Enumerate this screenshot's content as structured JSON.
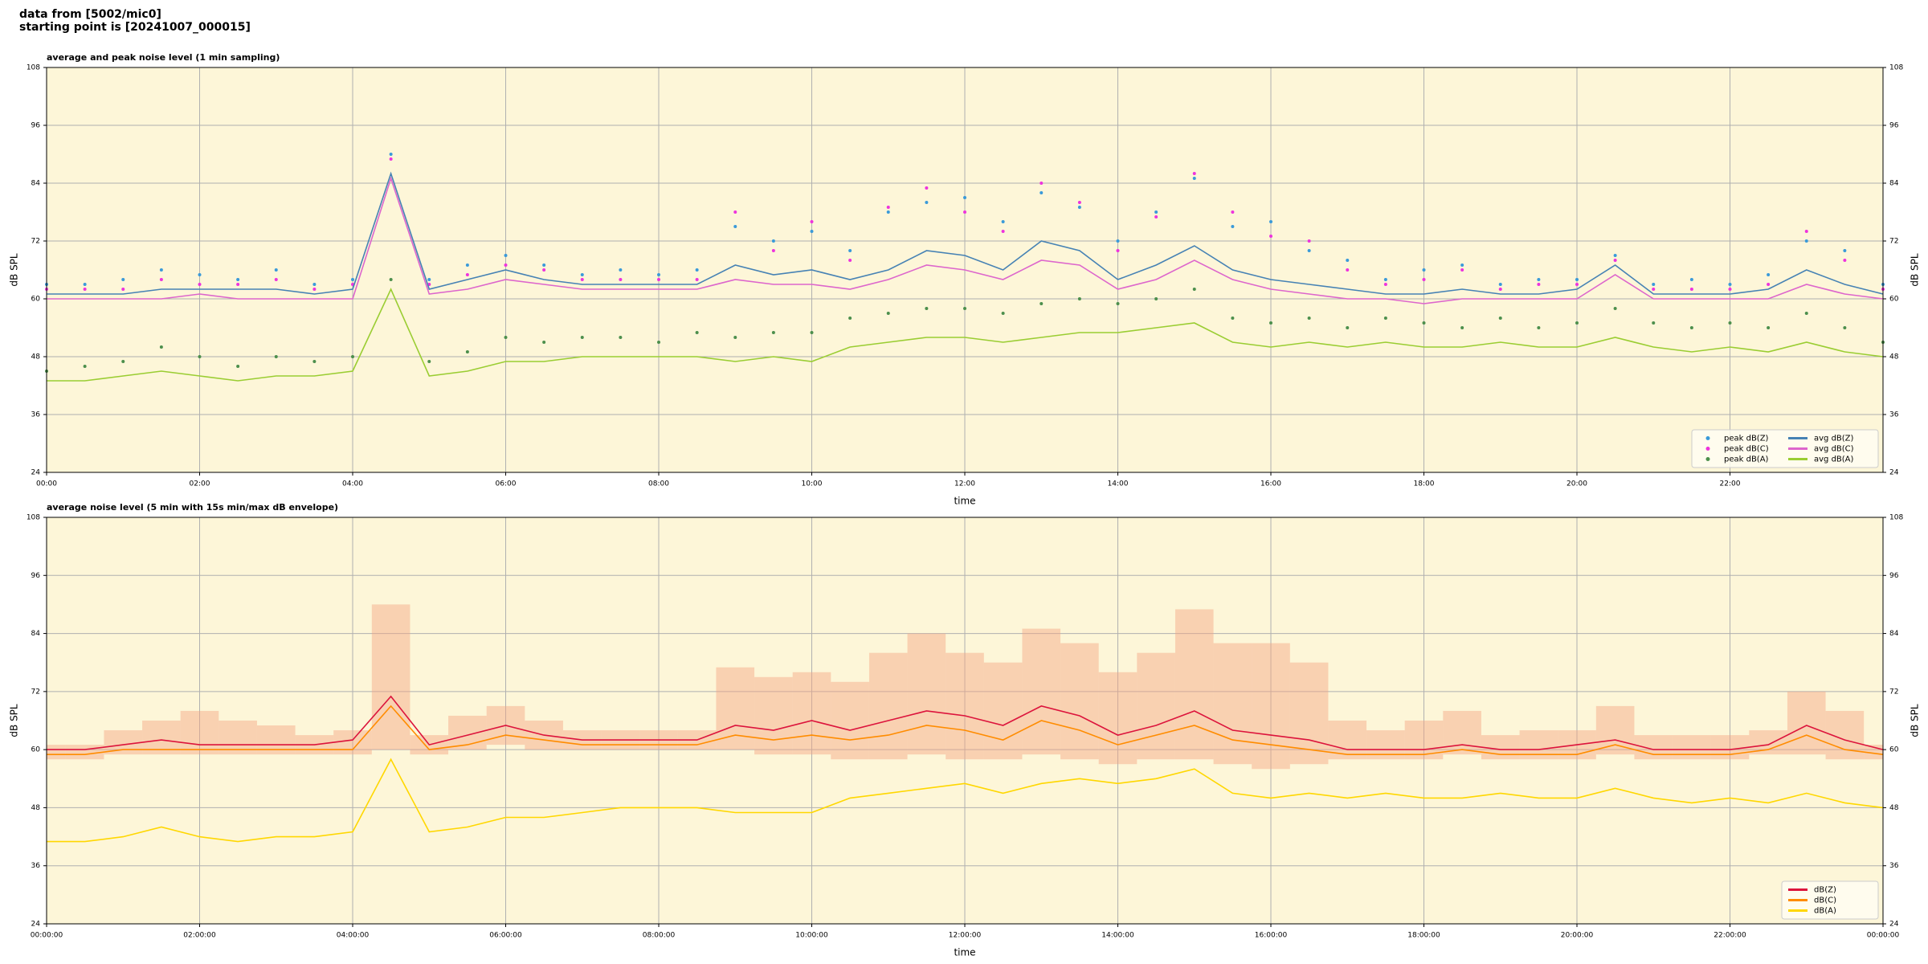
{
  "header": {
    "lines": [
      "data from [5002/mic0]",
      "starting point is [20241007_000015]"
    ]
  },
  "chart_data": [
    {
      "type": "line",
      "title": "average and peak noise level (1 min sampling)",
      "xlabel": "time",
      "ylabel": "dB SPL",
      "xlim": [
        0,
        24
      ],
      "ylim": [
        24,
        108
      ],
      "yticks": [
        24,
        36,
        48,
        60,
        72,
        84,
        96,
        108
      ],
      "xticks": [
        {
          "value": 0,
          "label": "00:00"
        },
        {
          "value": 2,
          "label": "02:00"
        },
        {
          "value": 4,
          "label": "04:00"
        },
        {
          "value": 6,
          "label": "06:00"
        },
        {
          "value": 8,
          "label": "08:00"
        },
        {
          "value": 10,
          "label": "10:00"
        },
        {
          "value": 12,
          "label": "12:00"
        },
        {
          "value": 14,
          "label": "14:00"
        },
        {
          "value": 16,
          "label": "16:00"
        },
        {
          "value": 18,
          "label": "18:00"
        },
        {
          "value": 20,
          "label": "20:00"
        },
        {
          "value": 22,
          "label": "22:00"
        }
      ],
      "grid": true,
      "background": "#fdf6d8",
      "legend": {
        "loc": "lower right",
        "ncol": 2
      },
      "x": [
        0,
        0.5,
        1,
        1.5,
        2,
        2.5,
        3,
        3.5,
        4,
        4.5,
        5,
        5.5,
        6,
        6.5,
        7,
        7.5,
        8,
        8.5,
        9,
        9.5,
        10,
        10.5,
        11,
        11.5,
        12,
        12.5,
        13,
        13.5,
        14,
        14.5,
        15,
        15.5,
        16,
        16.5,
        17,
        17.5,
        18,
        18.5,
        19,
        19.5,
        20,
        20.5,
        21,
        21.5,
        22,
        22.5,
        23,
        23.5,
        24
      ],
      "series": [
        {
          "name": "peak dB(Z)",
          "type": "scatter",
          "color": "#3a9ad9",
          "values": [
            63,
            63,
            64,
            66,
            65,
            64,
            66,
            63,
            64,
            90,
            64,
            67,
            69,
            67,
            65,
            66,
            65,
            66,
            75,
            72,
            74,
            70,
            78,
            80,
            81,
            76,
            82,
            79,
            72,
            78,
            85,
            75,
            76,
            70,
            68,
            64,
            66,
            67,
            63,
            64,
            64,
            69,
            63,
            64,
            63,
            65,
            72,
            70,
            63
          ]
        },
        {
          "name": "peak dB(C)",
          "type": "scatter",
          "color": "#ee33dd",
          "values": [
            62,
            62,
            62,
            64,
            63,
            63,
            64,
            62,
            63,
            89,
            63,
            65,
            67,
            66,
            64,
            64,
            64,
            64,
            78,
            70,
            76,
            68,
            79,
            83,
            78,
            74,
            84,
            80,
            70,
            77,
            86,
            78,
            73,
            72,
            66,
            63,
            64,
            66,
            62,
            63,
            63,
            68,
            62,
            62,
            62,
            63,
            74,
            68,
            62
          ]
        },
        {
          "name": "peak dB(A)",
          "type": "scatter",
          "color": "#4c8f4c",
          "values": [
            45,
            46,
            47,
            50,
            48,
            46,
            48,
            47,
            48,
            64,
            47,
            49,
            52,
            51,
            52,
            52,
            51,
            53,
            52,
            53,
            53,
            56,
            57,
            58,
            58,
            57,
            59,
            60,
            59,
            60,
            62,
            56,
            55,
            56,
            54,
            56,
            55,
            54,
            56,
            54,
            55,
            58,
            55,
            54,
            55,
            54,
            57,
            54,
            51
          ]
        },
        {
          "name": "avg dB(Z)",
          "type": "line",
          "color": "#4682b4",
          "values": [
            61,
            61,
            61,
            62,
            62,
            62,
            62,
            61,
            62,
            86,
            62,
            64,
            66,
            64,
            63,
            63,
            63,
            63,
            67,
            65,
            66,
            64,
            66,
            70,
            69,
            66,
            72,
            70,
            64,
            67,
            71,
            66,
            64,
            63,
            62,
            61,
            61,
            62,
            61,
            61,
            62,
            67,
            61,
            61,
            61,
            62,
            66,
            63,
            61
          ]
        },
        {
          "name": "avg dB(C)",
          "type": "line",
          "color": "#dd66cc",
          "values": [
            60,
            60,
            60,
            60,
            61,
            60,
            60,
            60,
            60,
            85,
            61,
            62,
            64,
            63,
            62,
            62,
            62,
            62,
            64,
            63,
            63,
            62,
            64,
            67,
            66,
            64,
            68,
            67,
            62,
            64,
            68,
            64,
            62,
            61,
            60,
            60,
            59,
            60,
            60,
            60,
            60,
            65,
            60,
            60,
            60,
            60,
            63,
            61,
            60
          ]
        },
        {
          "name": "avg dB(A)",
          "type": "line",
          "color": "#9acd32",
          "values": [
            43,
            43,
            44,
            45,
            44,
            43,
            44,
            44,
            45,
            62,
            44,
            45,
            47,
            47,
            48,
            48,
            48,
            48,
            47,
            48,
            47,
            50,
            51,
            52,
            52,
            51,
            52,
            53,
            53,
            54,
            55,
            51,
            50,
            51,
            50,
            51,
            50,
            50,
            51,
            50,
            50,
            52,
            50,
            49,
            50,
            49,
            51,
            49,
            48
          ]
        }
      ]
    },
    {
      "type": "line",
      "title": "average noise level (5 min with 15s min/max dB envelope)",
      "xlabel": "time",
      "ylabel": "dB SPL",
      "xlim": [
        0,
        24
      ],
      "ylim": [
        24,
        108
      ],
      "yticks": [
        24,
        36,
        48,
        60,
        72,
        84,
        96,
        108
      ],
      "xticks": [
        {
          "value": 0,
          "label": "00:00:00"
        },
        {
          "value": 2,
          "label": "02:00:00"
        },
        {
          "value": 4,
          "label": "04:00:00"
        },
        {
          "value": 6,
          "label": "06:00:00"
        },
        {
          "value": 8,
          "label": "08:00:00"
        },
        {
          "value": 10,
          "label": "10:00:00"
        },
        {
          "value": 12,
          "label": "12:00:00"
        },
        {
          "value": 14,
          "label": "14:00:00"
        },
        {
          "value": 16,
          "label": "16:00:00"
        },
        {
          "value": 18,
          "label": "18:00:00"
        },
        {
          "value": 20,
          "label": "20:00:00"
        },
        {
          "value": 22,
          "label": "22:00:00"
        },
        {
          "value": 24,
          "label": "00:00:00"
        }
      ],
      "grid": true,
      "background": "#fdf6d8",
      "legend": {
        "loc": "lower right",
        "ncol": 1
      },
      "x": [
        0,
        0.5,
        1,
        1.5,
        2,
        2.5,
        3,
        3.5,
        4,
        4.5,
        5,
        5.5,
        6,
        6.5,
        7,
        7.5,
        8,
        8.5,
        9,
        9.5,
        10,
        10.5,
        11,
        11.5,
        12,
        12.5,
        13,
        13.5,
        14,
        14.5,
        15,
        15.5,
        16,
        16.5,
        17,
        17.5,
        18,
        18.5,
        19,
        19.5,
        20,
        20.5,
        21,
        21.5,
        22,
        22.5,
        23,
        23.5,
        24
      ],
      "envelope": {
        "color": "#f4a582",
        "low": [
          58,
          58,
          59,
          59,
          59,
          59,
          59,
          59,
          59,
          60,
          59,
          60,
          61,
          60,
          60,
          60,
          60,
          60,
          60,
          59,
          59,
          58,
          58,
          59,
          58,
          58,
          59,
          58,
          57,
          58,
          58,
          57,
          56,
          57,
          58,
          58,
          58,
          59,
          58,
          58,
          58,
          59,
          58,
          58,
          58,
          59,
          59,
          58,
          58
        ],
        "high": [
          61,
          61,
          64,
          66,
          68,
          66,
          65,
          63,
          64,
          90,
          63,
          67,
          69,
          66,
          64,
          64,
          64,
          64,
          77,
          75,
          76,
          74,
          80,
          84,
          80,
          78,
          85,
          82,
          76,
          80,
          89,
          82,
          82,
          78,
          66,
          64,
          66,
          68,
          63,
          64,
          64,
          69,
          63,
          63,
          63,
          64,
          72,
          68,
          61
        ]
      },
      "series": [
        {
          "name": "dB(Z)",
          "type": "line",
          "color": "#dc143c",
          "values": [
            60,
            60,
            61,
            62,
            61,
            61,
            61,
            61,
            62,
            71,
            61,
            63,
            65,
            63,
            62,
            62,
            62,
            62,
            65,
            64,
            66,
            64,
            66,
            68,
            67,
            65,
            69,
            67,
            63,
            65,
            68,
            64,
            63,
            62,
            60,
            60,
            60,
            61,
            60,
            60,
            61,
            62,
            60,
            60,
            60,
            61,
            65,
            62,
            60
          ]
        },
        {
          "name": "dB(C)",
          "type": "line",
          "color": "#ff8c00",
          "values": [
            59,
            59,
            60,
            60,
            60,
            60,
            60,
            60,
            60,
            69,
            60,
            61,
            63,
            62,
            61,
            61,
            61,
            61,
            63,
            62,
            63,
            62,
            63,
            65,
            64,
            62,
            66,
            64,
            61,
            63,
            65,
            62,
            61,
            60,
            59,
            59,
            59,
            60,
            59,
            59,
            59,
            61,
            59,
            59,
            59,
            60,
            63,
            60,
            59
          ]
        },
        {
          "name": "dB(A)",
          "type": "line",
          "color": "#ffd700",
          "values": [
            41,
            41,
            42,
            44,
            42,
            41,
            42,
            42,
            43,
            58,
            43,
            44,
            46,
            46,
            47,
            48,
            48,
            48,
            47,
            47,
            47,
            50,
            51,
            52,
            53,
            51,
            53,
            54,
            53,
            54,
            56,
            51,
            50,
            51,
            50,
            51,
            50,
            50,
            51,
            50,
            50,
            52,
            50,
            49,
            50,
            49,
            51,
            49,
            48
          ]
        }
      ]
    }
  ]
}
